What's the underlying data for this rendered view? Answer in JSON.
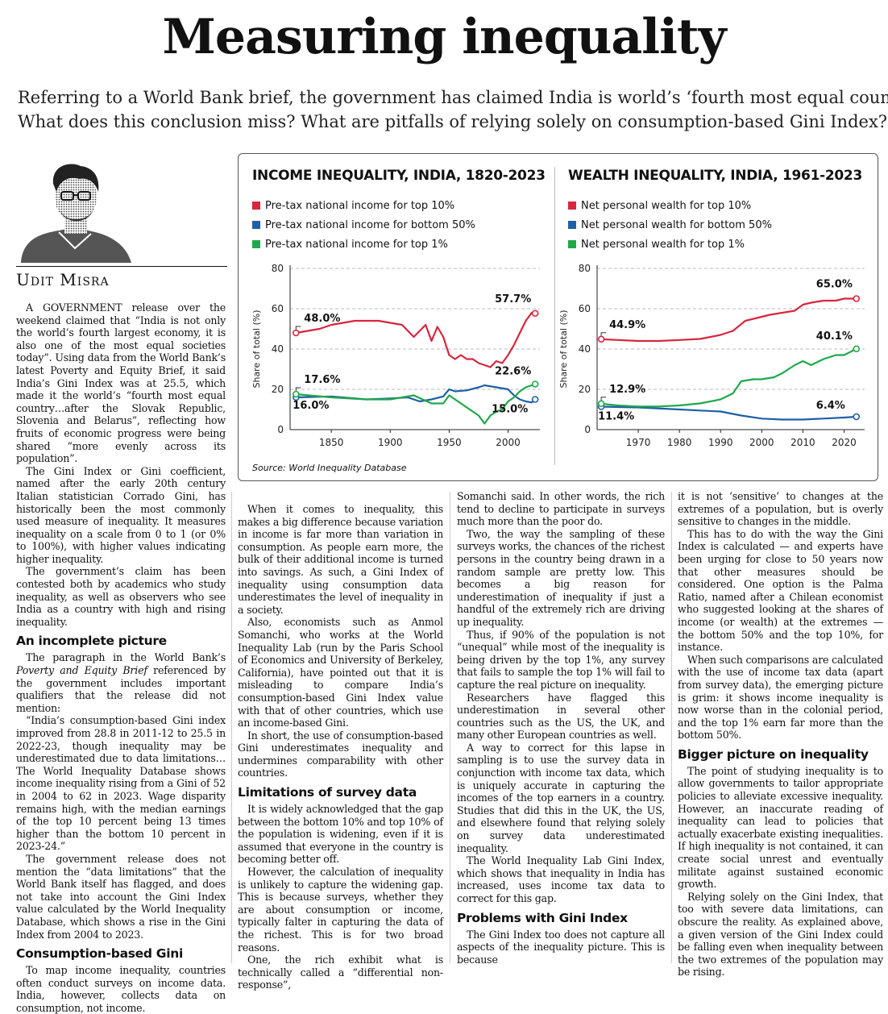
{
  "headline": "Measuring inequality",
  "deck": {
    "line1": "Referring to a World Bank brief, the government has claimed India is world’s ‘fourth most equal country’.",
    "line2": "What does this conclusion miss? What are pitfalls of relying solely on consumption-based Gini Index?"
  },
  "author": "Udit Misra",
  "source": "Source: World Inequality Database",
  "chart_data": [
    {
      "type": "line",
      "title": "INCOME INEQUALITY, INDIA, 1820-2023",
      "ylabel": "Share of total (%)",
      "ylim": [
        0,
        80
      ],
      "yticks": [
        "0",
        "20",
        "40",
        "60",
        "80"
      ],
      "xticks": [
        "1850",
        "1900",
        "1950",
        "2000"
      ],
      "xlim": [
        1815,
        2027
      ],
      "grid": "dashed horizontal",
      "series": [
        {
          "name": "Pre-tax national income for top 10%",
          "color": "#d7263d",
          "x": [
            1820,
            1830,
            1840,
            1850,
            1860,
            1870,
            1880,
            1890,
            1900,
            1910,
            1920,
            1930,
            1935,
            1940,
            1945,
            1950,
            1955,
            1960,
            1965,
            1970,
            1975,
            1980,
            1985,
            1990,
            1995,
            2000,
            2005,
            2010,
            2015,
            2020,
            2023
          ],
          "y": [
            48,
            49,
            50,
            52,
            53,
            54,
            54,
            54,
            53,
            52,
            46,
            52,
            44,
            51,
            46,
            37,
            35,
            37,
            35,
            35,
            33,
            32,
            31,
            34,
            33,
            37,
            42,
            48,
            54,
            58,
            57.7
          ]
        },
        {
          "name": "Pre-tax national income for bottom 50%",
          "color": "#1f5fa6",
          "x": [
            1820,
            1850,
            1880,
            1900,
            1915,
            1925,
            1935,
            1945,
            1950,
            1955,
            1965,
            1975,
            1980,
            1990,
            2000,
            2005,
            2010,
            2015,
            2020,
            2023
          ],
          "y": [
            16,
            16.5,
            15,
            15.5,
            16,
            14,
            15,
            16.5,
            20,
            19,
            19.5,
            21,
            22,
            21,
            20,
            17,
            15,
            14,
            13.5,
            15
          ]
        },
        {
          "name": "Pre-tax national income for top 1%",
          "color": "#1fa84a",
          "x": [
            1820,
            1850,
            1880,
            1900,
            1920,
            1935,
            1945,
            1950,
            1955,
            1965,
            1975,
            1980,
            1985,
            1990,
            1995,
            2000,
            2005,
            2010,
            2015,
            2020,
            2023
          ],
          "y": [
            17.6,
            16,
            15,
            15,
            17,
            13,
            13,
            17,
            15,
            11,
            7,
            3,
            7,
            9,
            10,
            14,
            16,
            19,
            21,
            22,
            22.6
          ]
        }
      ],
      "annotations": [
        "48.0%",
        "57.7%",
        "17.6%",
        "16.0%",
        "22.6%",
        "15.0%"
      ]
    },
    {
      "type": "line",
      "title": "WEALTH INEQUALITY, INDIA, 1961-2023",
      "ylabel": "Share of total (%)",
      "ylim": [
        0,
        80
      ],
      "yticks": [
        "0",
        "20",
        "40",
        "60",
        "80"
      ],
      "xticks": [
        "1970",
        "1980",
        "1990",
        "2000",
        "2010",
        "2020"
      ],
      "xlim": [
        1960,
        2025
      ],
      "grid": "dashed horizontal",
      "series": [
        {
          "name": "Net personal wealth for top 10%",
          "color": "#d7263d",
          "x": [
            1961,
            1965,
            1970,
            1975,
            1980,
            1985,
            1990,
            1993,
            1996,
            2000,
            2002,
            2005,
            2008,
            2010,
            2012,
            2015,
            2018,
            2020,
            2023
          ],
          "y": [
            44.9,
            44.5,
            44,
            44,
            44.5,
            45,
            47,
            49,
            54,
            56,
            57,
            58,
            59,
            62,
            63,
            64,
            64,
            65,
            65.0
          ]
        },
        {
          "name": "Net personal wealth for bottom 50%",
          "color": "#1f5fa6",
          "x": [
            1961,
            1970,
            1980,
            1985,
            1990,
            1995,
            2000,
            2005,
            2010,
            2015,
            2020,
            2023
          ],
          "y": [
            11.4,
            11,
            10,
            9.5,
            9,
            7,
            5.5,
            5,
            5,
            5.5,
            6,
            6.4
          ]
        },
        {
          "name": "Net personal wealth for top 1%",
          "color": "#1fa84a",
          "x": [
            1961,
            1965,
            1970,
            1975,
            1980,
            1985,
            1990,
            1993,
            1995,
            1998,
            2000,
            2003,
            2005,
            2008,
            2010,
            2012,
            2015,
            2018,
            2020,
            2023
          ],
          "y": [
            12.9,
            12,
            11.5,
            11.5,
            12,
            13,
            15,
            18,
            24,
            25,
            25,
            26,
            28,
            32,
            34,
            32,
            35,
            37,
            37,
            40.1
          ]
        }
      ],
      "annotations": [
        "44.9%",
        "65.0%",
        "12.9%",
        "11.4%",
        "40.1%",
        "6.4%"
      ]
    }
  ],
  "columns": {
    "c1": {
      "p1": "A GOVERNMENT release over the weekend claimed that “India is not only the world’s fourth largest economy, it is also one of the most equal societies today”. Using data from the World Bank’s latest Poverty and Equity Brief, it said India’s Gini Index was at 25.5, which made it the world’s “fourth most equal country…after the Slovak Republic, Slovenia and Belarus”, reflecting how fruits of economic progress were being shared “more evenly across its population”.",
      "p2": "The Gini Index or Gini coefficient, named after the early 20th century Italian statistician Corrado Gini, has historically been the most commonly used measure of inequality. It measures inequality on a scale from 0 to 1 (or 0% to 100%), with higher values indicating higher inequality.",
      "p3": "The government’s claim has been contested both by academics who study inequality, as well as observers who see India as a country with high and rising inequality.",
      "h1": "An incomplete picture",
      "p4a": "The paragraph in the World Bank’s ",
      "p4b": "Poverty and Equity Brief",
      "p4c": " referenced by the government includes important qualifiers that the release did not mention:",
      "p5": "“India’s consumption-based Gini index improved from 28.8 in 2011-12 to 25.5 in 2022-23, though inequality may be underestimated due to data limitations… The World Inequality Database shows income inequality rising from a Gini of 52 in 2004 to 62 in 2023. Wage disparity remains high, with the median earnings of the top 10 percent being 13 times higher than the bottom 10 percent in 2023-24.”",
      "p6": "The government release does not mention the “data limitations” that the World Bank itself has flagged, and does not take into account the Gini Index value calculated by the World Inequality Database, which shows a rise in the Gini Index from 2004 to 2023.",
      "h2": "Consumption-based Gini",
      "p7": "To map income inequality, countries often conduct surveys on income data. India, however, collects data on consumption, not income."
    },
    "c2": {
      "p1": "When it comes to inequality, this makes a big difference because variation in income is far more than variation in consumption. As people earn more, the bulk of their additional income is turned into savings. As such, a Gini Index of inequality using consumption data underestimates the level of inequality in a society.",
      "p2": "Also, economists such as Anmol Somanchi, who works at the World Inequality Lab (run by the Paris School of Economics and University of Berkeley, California), have pointed out that it is misleading to compare India’s consumption-based Gini Index value with that of other countries, which use an income-based Gini.",
      "p3": "In short, the use of consumption-based Gini underestimates inequality and undermines comparability with other countries.",
      "h1": "Limitations of survey data",
      "p4": "It is widely acknowledged that the gap between the bottom 10% and top 10% of the population is widening, even if it is assumed that everyone in the country is becoming better off.",
      "p5": "However, the calculation of inequality is unlikely to capture the widening gap. This is because surveys, whether they are about consumption or income, typically falter in capturing the data of the richest. This is for two broad reasons.",
      "p6": "One, the rich exhibit what is technically called a “differential non-response”,"
    },
    "c3": {
      "p1": "Somanchi said. In other words, the rich tend to decline to participate in surveys much more than the poor do.",
      "p2": "Two, the way the sampling of these surveys works, the chances of the richest persons in the country being drawn in a random sample are pretty low. This becomes a big reason for underestimation of inequality if just a handful of the extremely rich are driving up inequality.",
      "p3": "Thus, if 90% of the population is not “unequal” while most of the inequality is being driven by the top 1%, any survey that fails to sample the top 1% will fail to capture the real picture on inequality.",
      "p4": "Researchers have flagged this underestimation in several other countries such as the US, the UK, and many other European countries as well.",
      "p5": "A way to correct for this lapse in sampling is to use the survey data in conjunction with income tax data, which is uniquely accurate in capturing the incomes of the top earners in a country. Studies that did this in the UK, the US, and elsewhere found that relying solely on survey data underestimated inequality.",
      "p6": "The World Inequality Lab Gini Index, which shows that inequality in India has increased, uses income tax data to correct for this gap.",
      "h1": "Problems with Gini Index",
      "p7": "The Gini Index too does not capture all aspects of the inequality picture. This is because"
    },
    "c4": {
      "p1": "it is not ‘sensitive’ to changes at the extremes of a population, but is overly sensitive to changes in the middle.",
      "p2": "This has to do with the way the Gini Index is calculated — and experts have been urging for close to 50 years now that other measures should be considered. One option is the Palma Ratio, named after a Chilean economist who suggested looking at the shares of income (or wealth) at the extremes — the bottom 50% and the top 10%, for instance.",
      "p3": "When such comparisons are calculated with the use of income tax data (apart from survey data), the emerging picture is grim: it shows income inequality is now worse than in the colonial period, and the top 1% earn far more than the bottom 50%.",
      "h1": "Bigger picture on inequality",
      "p4": "The point of studying inequality is to allow governments to tailor appropriate policies to alleviate excessive inequality. However, an inaccurate reading of inequality can lead to policies that actually exacerbate existing inequalities. If high inequality is not contained, it can create social unrest and eventually militate against sustained economic growth.",
      "p5": "Relying solely on the Gini Index, that too with severe data limitations, can obscure the reality. As explained above, a given version of the Gini Index could be falling even when inequality between the two extremes of the population may be rising."
    }
  }
}
